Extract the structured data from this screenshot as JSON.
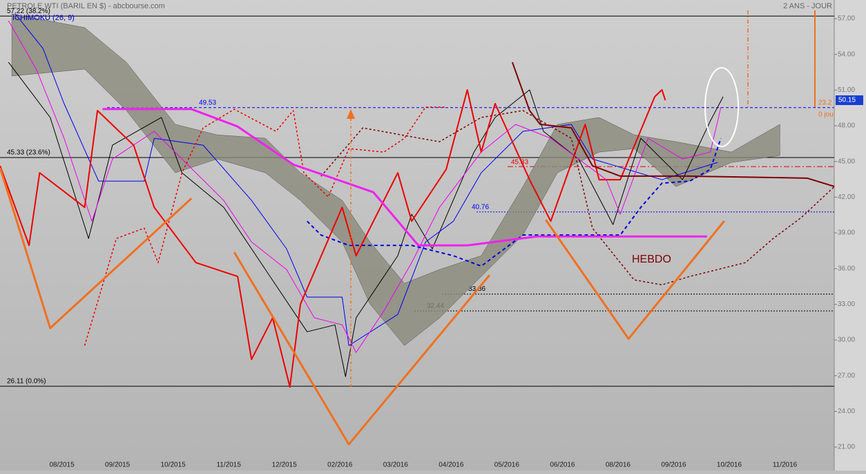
{
  "chart_data": {
    "type": "line",
    "title": "PETROLE WTI (BARIL EN $) - abcbourse.com",
    "period": "2 ANS - JOUR",
    "indicator": "ICHIMOKU (26, 9)",
    "annotations": [
      "HEBDO",
      "45.33",
      "23.2",
      "0 jou"
    ],
    "last_price": 50.15,
    "xlim": [
      -1.1125,
      13.8875
    ],
    "xticks": [
      {
        "value": 0,
        "label": "08/2015"
      },
      {
        "value": 1,
        "label": "09/2015"
      },
      {
        "value": 2,
        "label": "10/2015"
      },
      {
        "value": 3,
        "label": "11/2015"
      },
      {
        "value": 4,
        "label": "12/2015"
      },
      {
        "value": 5,
        "label": "02/2016"
      },
      {
        "value": 6,
        "label": "03/2016"
      },
      {
        "value": 7,
        "label": "04/2016"
      },
      {
        "value": 8,
        "label": "05/2016"
      },
      {
        "value": 9,
        "label": "06/2016"
      },
      {
        "value": 10,
        "label": "08/2016"
      },
      {
        "value": 11,
        "label": "09/2016"
      },
      {
        "value": 12,
        "label": "10/2016"
      },
      {
        "value": 13,
        "label": "11/2016"
      }
    ],
    "ylim": [
      19.03,
      58.57
    ],
    "yticks": [
      {
        "value": 21,
        "label": "21.00"
      },
      {
        "value": 24,
        "label": "24.00"
      },
      {
        "value": 27,
        "label": "27.00"
      },
      {
        "value": 30,
        "label": "30.00"
      },
      {
        "value": 33,
        "label": "33.00"
      },
      {
        "value": 36,
        "label": "36.00"
      },
      {
        "value": 39,
        "label": "39.00"
      },
      {
        "value": 42,
        "label": "42.00"
      },
      {
        "value": 45,
        "label": "45.00"
      },
      {
        "value": 48,
        "label": "48.00"
      },
      {
        "value": 51,
        "label": "51.00"
      },
      {
        "value": 54,
        "label": "54.00"
      },
      {
        "value": 57,
        "label": "57.00"
      }
    ],
    "hlines": [
      {
        "value": 57.22,
        "label": "57.22  (38.2%)",
        "color": "#000000",
        "style": "solid"
      },
      {
        "value": 45.33,
        "label": "45.33  (23.6%)",
        "color": "#000000",
        "style": "solid"
      },
      {
        "value": 26.11,
        "label": "26.11  (0.0%)",
        "color": "#000000",
        "style": "solid"
      },
      {
        "value": 49.53,
        "label": "49.53",
        "color": "#0000ff",
        "style": "dashed"
      },
      {
        "value": 40.76,
        "label": "40.76",
        "color": "#0000ff",
        "style": "dotted"
      },
      {
        "value": 33.86,
        "label": "33.86",
        "color": "#000000",
        "style": "dotted"
      },
      {
        "value": 32.44,
        "label": "32.44",
        "color": "#000000",
        "style": "dotted"
      },
      {
        "value": 44.57,
        "label": "",
        "color": "#e00000",
        "style": "dashdot"
      }
    ],
    "series": [
      {
        "style": "band",
        "color": "#8a8a7a",
        "x": [
          -0.9,
          0.41,
          1.16,
          2.04,
          2.79,
          3.66,
          4.29,
          5.04,
          5.54,
          6.16,
          6.79,
          7.54,
          8.29,
          8.91,
          9.66,
          10.29,
          11.04,
          12.04,
          12.91
        ],
        "values": [
          57.41,
          56.25,
          53.34,
          48.12,
          47.24,
          46.95,
          44.05,
          41.73,
          38.24,
          34.76,
          35.92,
          37.08,
          42.89,
          48.12,
          48.7,
          47.24,
          46.66,
          45.79,
          48.12
        ],
        "lower": [
          52.18,
          52.76,
          49.28,
          44.05,
          45.21,
          44.05,
          41.73,
          38.24,
          33.02,
          29.53,
          31.85,
          35.34,
          38.82,
          44.05,
          45.79,
          46.08,
          42.89,
          44.92,
          45.5
        ]
      },
      {
        "style": "thin",
        "color": "#000000",
        "x": [
          -0.96,
          -0.21,
          0.48,
          0.91,
          1.79,
          2.16,
          2.91,
          3.66,
          4.41,
          4.91,
          5.1,
          5.29,
          6.04,
          6.29,
          6.66,
          7.41,
          7.79,
          8.41,
          8.66,
          9.29,
          9.91,
          10.41,
          11.16,
          11.66,
          11.89
        ],
        "values": [
          53.34,
          48.7,
          38.53,
          46.37,
          48.7,
          44.05,
          41.15,
          35.92,
          30.69,
          31.27,
          26.92,
          31.86,
          37.08,
          40.57,
          37.66,
          45.79,
          48.7,
          51.02,
          47.53,
          45.21,
          39.7,
          46.95,
          43.47,
          48.41,
          50.44
        ]
      },
      {
        "style": "thin",
        "color": "#0000ee",
        "x": [
          -0.84,
          -0.34,
          0.04,
          0.66,
          1.48,
          1.66,
          2.54,
          3.41,
          4.04,
          4.41,
          5.04,
          5.16,
          6.04,
          6.54,
          7.04,
          7.54,
          8.29,
          9.16,
          9.54,
          10.79,
          11.79
        ],
        "values": [
          57.41,
          54.5,
          49.86,
          43.35,
          43.35,
          46.95,
          46.37,
          41.73,
          37.66,
          33.6,
          33.6,
          29.53,
          32.15,
          38.24,
          39.98,
          44.05,
          47.53,
          48.12,
          45.21,
          43.47,
          44.92
        ]
      },
      {
        "style": "thin",
        "color": "#ee00ee",
        "x": [
          -0.96,
          -0.46,
          0.04,
          0.54,
          0.91,
          1.66,
          2.16,
          2.91,
          3.41,
          4.04,
          4.54,
          5.04,
          5.29,
          5.79,
          6.29,
          6.79,
          7.54,
          8.16,
          8.79,
          9.29,
          9.79,
          10.04,
          10.54,
          11.16,
          11.66,
          11.85
        ],
        "values": [
          56.83,
          52.76,
          46.95,
          39.98,
          45.21,
          47.53,
          45.21,
          41.73,
          38.24,
          35.92,
          31.86,
          31.27,
          28.95,
          32.44,
          36.5,
          41.15,
          45.79,
          48.12,
          46.95,
          45.21,
          43.47,
          40.57,
          46.95,
          45.21,
          45.79,
          49.57
        ]
      },
      {
        "style": "dashed",
        "color": "#0000dd",
        "x": [
          4.41,
          4.66,
          5.16,
          6.29,
          7.04,
          7.54,
          8.29,
          10.04,
          10.41,
          10.79,
          11.29,
          11.66,
          11.85
        ],
        "values": [
          39.98,
          38.82,
          37.95,
          37.95,
          37.08,
          36.21,
          38.82,
          38.82,
          41.15,
          43.18,
          43.35,
          44.34,
          46.95
        ]
      },
      {
        "style": "dotted",
        "color": "#ee0000",
        "x": [
          0.41,
          0.98,
          1.48,
          1.73,
          2.16,
          2.54,
          3.1,
          3.85,
          4.16,
          4.35,
          4.79,
          5.16,
          5.79,
          6.16,
          6.54,
          6.91
        ],
        "values": [
          29.53,
          38.53,
          39.4,
          36.5,
          44.05,
          47.82,
          49.39,
          47.53,
          49.28,
          44.05,
          42.02,
          46.08,
          45.79,
          46.95,
          49.57,
          49.57
        ]
      },
      {
        "style": "medium",
        "color": "#ee0000",
        "x": [
          -1.11,
          -0.59,
          -0.4,
          0.41,
          0.64,
          1.29,
          1.66,
          2.41,
          3.16,
          3.41,
          3.79,
          4.1,
          4.29,
          5.04,
          5.29,
          6.04,
          6.29,
          6.91,
          7.29,
          7.54,
          7.79,
          8.41,
          8.79,
          9.41,
          9.66,
          10.04,
          10.66,
          10.79,
          10.85
        ],
        "values": [
          44.63,
          37.95,
          44.05,
          41.15,
          49.28,
          46.37,
          41.15,
          36.5,
          35.34,
          28.37,
          31.86,
          26.05,
          33.02,
          41.15,
          37.08,
          44.05,
          39.98,
          44.34,
          51.02,
          45.79,
          49.86,
          43.47,
          39.98,
          48.12,
          43.47,
          43.47,
          50.44,
          51.02,
          50.15
        ]
      },
      {
        "style": "dotted",
        "color": "#800000",
        "x": [
          4.66,
          5.41,
          6.79,
          7.54,
          8.29,
          9.16,
          9.54,
          10.29,
          10.79,
          11.29,
          12.29,
          12.79,
          13.29,
          13.89
        ],
        "values": [
          43.76,
          47.82,
          46.66,
          48.7,
          49.28,
          46.95,
          39.4,
          35.05,
          34.64,
          35.34,
          36.5,
          38.53,
          40.27,
          42.89
        ]
      },
      {
        "style": "medium",
        "color": "#800000",
        "x": [
          8.1,
          8.41,
          8.6,
          9.16,
          9.54,
          10.04,
          11.29,
          13.4,
          13.89
        ],
        "values": [
          53.34,
          49.28,
          48.12,
          47.83,
          44.64,
          43.77,
          43.77,
          43.6,
          42.9
        ]
      },
      {
        "style": "thick",
        "color": "#ee22ee",
        "x": [
          0.73,
          2.33,
          3.16,
          4.16,
          5.6,
          6.41,
          7.29,
          8.54,
          11.6
        ],
        "values": [
          49.4,
          49.4,
          47.94,
          44.75,
          42.42,
          37.95,
          37.95,
          38.7,
          38.7
        ]
      },
      {
        "style": "thick",
        "color": "#f07020",
        "x": [
          -1.11,
          -0.21,
          2.33
        ],
        "values": [
          44.46,
          31.0,
          41.9
        ]
      },
      {
        "style": "thick",
        "color": "#f07020",
        "x": [
          3.1,
          5.16,
          7.69
        ],
        "values": [
          37.37,
          21.23,
          35.46
        ]
      },
      {
        "style": "thick",
        "color": "#f07020",
        "x": [
          8.7,
          10.19,
          11.91
        ],
        "values": [
          40.1,
          30.1,
          40.0
        ]
      }
    ]
  }
}
